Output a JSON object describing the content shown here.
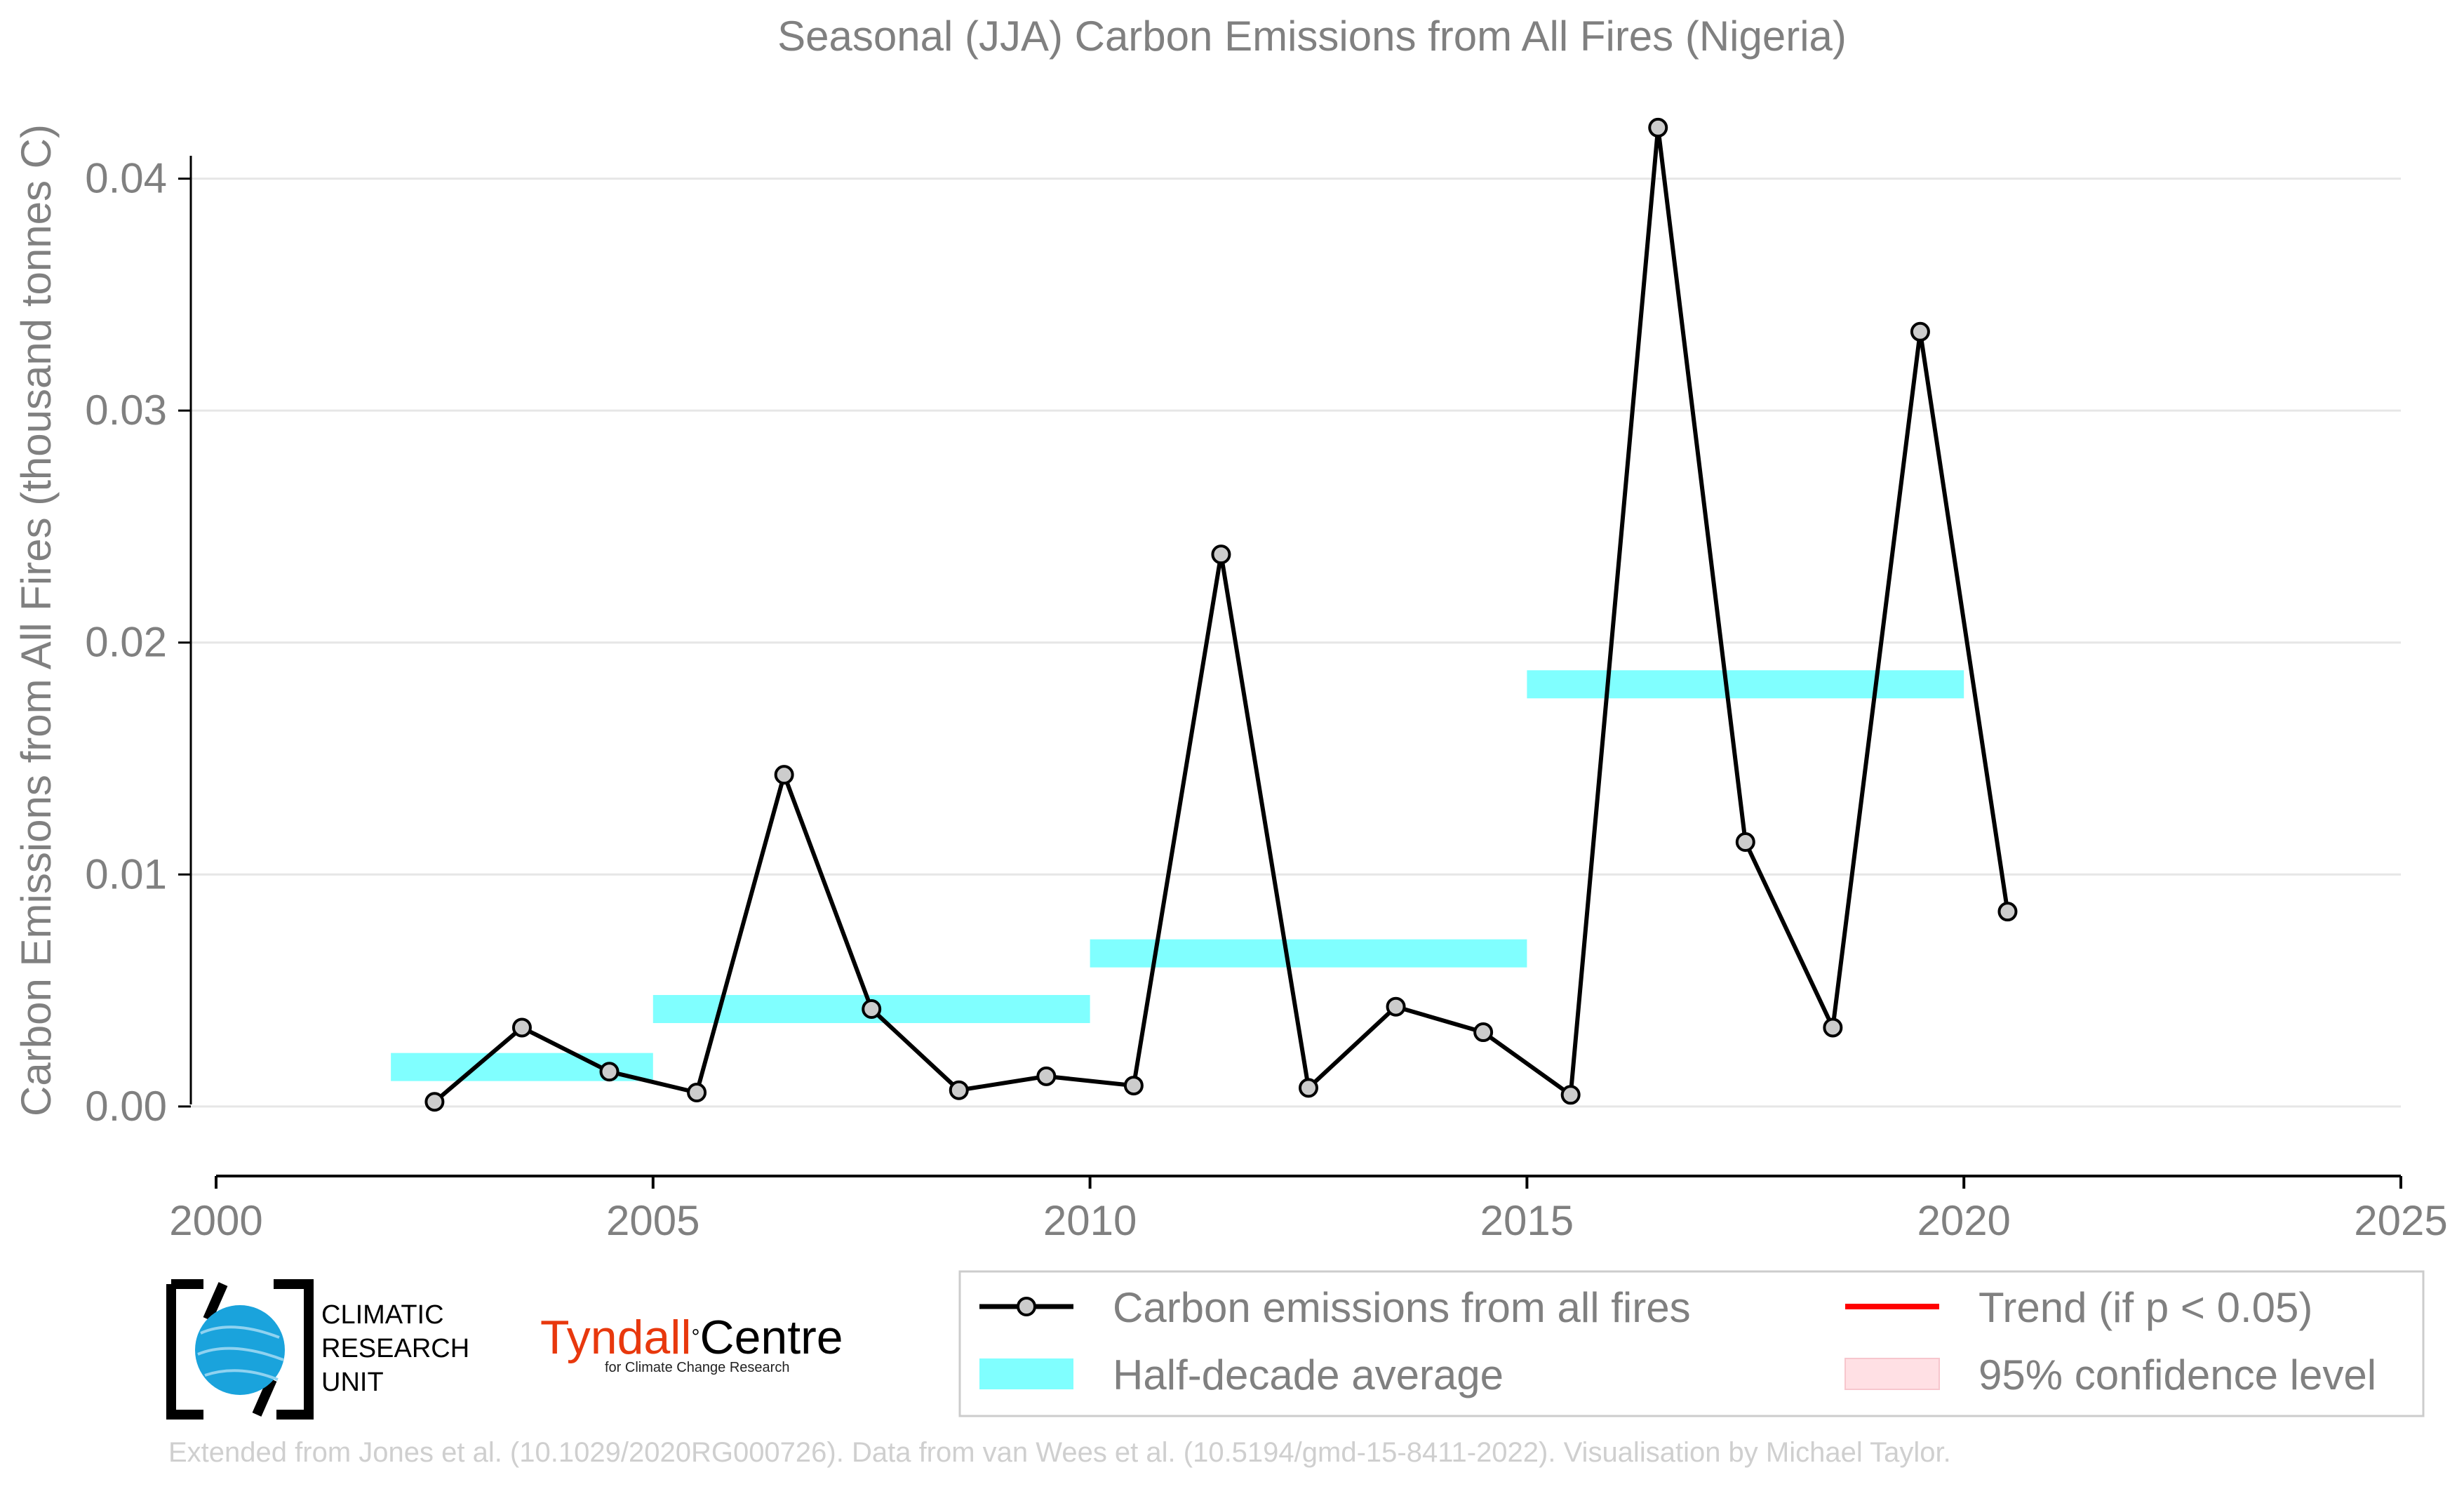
{
  "chart_data": {
    "type": "line",
    "title": "Seasonal (JJA) Carbon Emissions from All Fires (Nigeria)",
    "xlabel": "",
    "ylabel": "Carbon Emissions from All Fires (thousand tonnes C)",
    "xlim": [
      2000,
      2025
    ],
    "ylim": [
      -0.003,
      0.0425
    ],
    "x_ticks": [
      2000,
      2005,
      2010,
      2015,
      2020,
      2025
    ],
    "x_tick_labels": [
      "2000",
      "2005",
      "2010",
      "2015",
      "2020",
      "2025"
    ],
    "y_ticks": [
      0.0,
      0.01,
      0.02,
      0.03,
      0.04
    ],
    "y_tick_labels": [
      "0.00",
      "0.01",
      "0.02",
      "0.03",
      "0.04"
    ],
    "grid": "horizontal",
    "legend_position": "bottom-right",
    "series": [
      {
        "name": "Carbon emissions from all fires",
        "color": "#000000",
        "marker_fill": "#cccccc",
        "x": [
          2002.5,
          2003.5,
          2004.5,
          2005.5,
          2006.5,
          2007.5,
          2008.5,
          2009.5,
          2010.5,
          2011.5,
          2012.5,
          2013.5,
          2014.5,
          2015.5,
          2016.5,
          2017.5,
          2018.5,
          2019.5,
          2020.5
        ],
        "y": [
          0.0002,
          0.0034,
          0.0015,
          0.0006,
          0.0143,
          0.0042,
          0.0007,
          0.0013,
          0.0009,
          0.0238,
          0.0008,
          0.0043,
          0.0032,
          0.0005,
          0.0422,
          0.0114,
          0.0034,
          0.0334,
          0.0084
        ]
      }
    ],
    "half_decade_averages": {
      "name": "Half-decade average",
      "color": "#80ffff",
      "segments": [
        {
          "start": 2002,
          "end": 2005,
          "value": 0.0017
        },
        {
          "start": 2005,
          "end": 2010,
          "value": 0.0042
        },
        {
          "start": 2010,
          "end": 2015,
          "value": 0.0066
        },
        {
          "start": 2015,
          "end": 2020,
          "value": 0.0182
        }
      ]
    },
    "legend": [
      {
        "label": "Carbon emissions from all fires",
        "kind": "line-marker",
        "color": "#000000"
      },
      {
        "label": "Trend (if p < 0.05)",
        "kind": "line",
        "color": "#ff0000"
      },
      {
        "label": "Half-decade average",
        "kind": "patch",
        "color": "#80ffff"
      },
      {
        "label": "95% confidence level",
        "kind": "patch",
        "color": "#ffe0e4"
      }
    ]
  },
  "logos": {
    "cru": [
      "CLIMATIC",
      "RESEARCH",
      "UNIT"
    ],
    "tyndall_red": "Tyndall",
    "tyndall_degree": "°",
    "tyndall_black": "Centre",
    "tyndall_sub": "for Climate Change Research"
  },
  "footer": "Extended from Jones et al. (10.1029/2020RG000726). Data from van Wees et al. (10.5194/gmd-15-8411-2022). Visualisation by Michael Taylor."
}
